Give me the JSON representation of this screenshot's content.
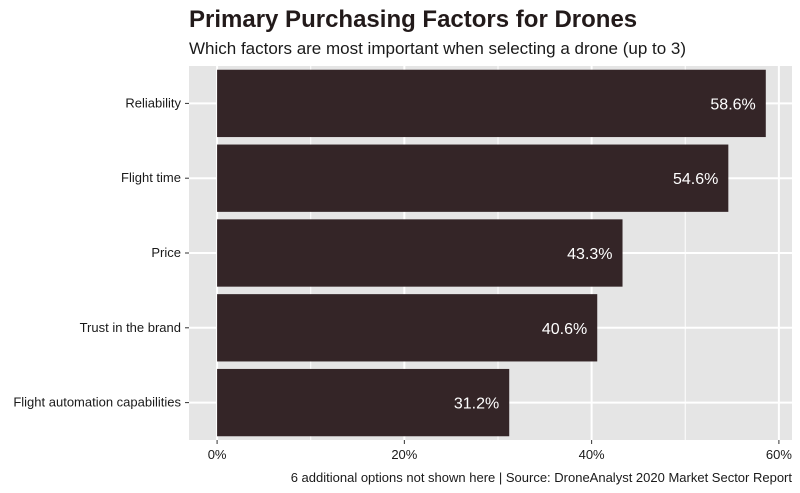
{
  "title": "Primary Purchasing Factors for Drones",
  "subtitle": "Which factors are most important when selecting a drone (up to 3)",
  "caption": "6 additional options not shown here   |   Source: DroneAnalyst 2020 Market Sector Report",
  "colors": {
    "bar": "#342527",
    "panel": "#e5e5e5",
    "grid": "#ffffff",
    "label_text": "#ffffff"
  },
  "chart_data": {
    "type": "bar",
    "orientation": "horizontal",
    "title": "Primary Purchasing Factors for Drones",
    "subtitle": "Which factors are most important when selecting a drone (up to 3)",
    "categories": [
      "Reliability",
      "Flight time",
      "Price",
      "Trust in the brand",
      "Flight automation capabilities"
    ],
    "values": [
      58.6,
      54.6,
      43.3,
      40.6,
      31.2
    ],
    "data_labels": [
      "58.6%",
      "54.6%",
      "43.3%",
      "40.6%",
      "31.2%"
    ],
    "x_ticks": [
      0,
      20,
      40,
      60
    ],
    "x_tick_labels": [
      "0%",
      "20%",
      "40%",
      "60%"
    ],
    "xlim": [
      -3,
      61.4
    ],
    "grid": true,
    "legend": "none",
    "xlabel": "",
    "ylabel": ""
  }
}
